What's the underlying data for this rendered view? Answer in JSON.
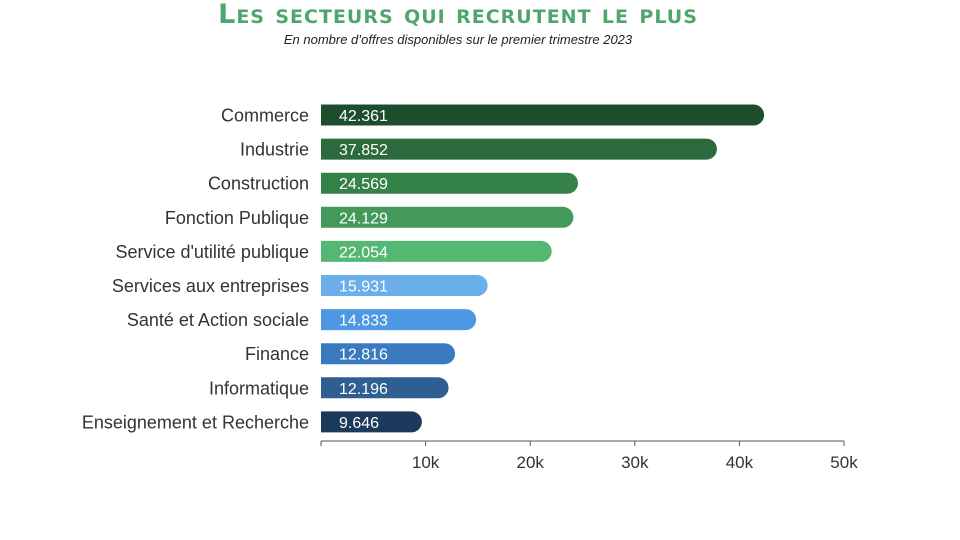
{
  "title": "Les secteurs qui recrutent le plus",
  "subtitle": "En nombre d’offres disponibles sur le premier trimestre 2023",
  "chart_data": {
    "type": "bar",
    "orientation": "horizontal",
    "title": "Les secteurs qui recrutent le plus",
    "subtitle": "En nombre d’offres disponibles sur le premier trimestre 2023",
    "categories": [
      "Commerce",
      "Industrie",
      "Construction",
      "Fonction Publique",
      "Service d'utilité publique",
      "Services aux entreprises",
      "Santé et Action sociale",
      "Finance",
      "Informatique",
      "Enseignement et Recherche"
    ],
    "values": [
      42361,
      37852,
      24569,
      24129,
      22054,
      15931,
      14833,
      12816,
      12196,
      9646
    ],
    "value_labels": [
      "42.361",
      "37.852",
      "24.569",
      "24.129",
      "22.054",
      "15.931",
      "14.833",
      "12.816",
      "12.196",
      "9.646"
    ],
    "colors": [
      "#1d4d2c",
      "#2a6a3c",
      "#358248",
      "#43995a",
      "#55b872",
      "#6aaeea",
      "#4c98e2",
      "#3a7bc0",
      "#2f5f92",
      "#1c3a5c"
    ],
    "xlim": [
      0,
      50000
    ],
    "xticks": [
      10000,
      20000,
      30000,
      40000,
      50000
    ],
    "xtick_labels": [
      "10k",
      "20k",
      "30k",
      "40k",
      "50k"
    ],
    "xlabel": "",
    "ylabel": "",
    "grid": false,
    "legend": "none"
  }
}
